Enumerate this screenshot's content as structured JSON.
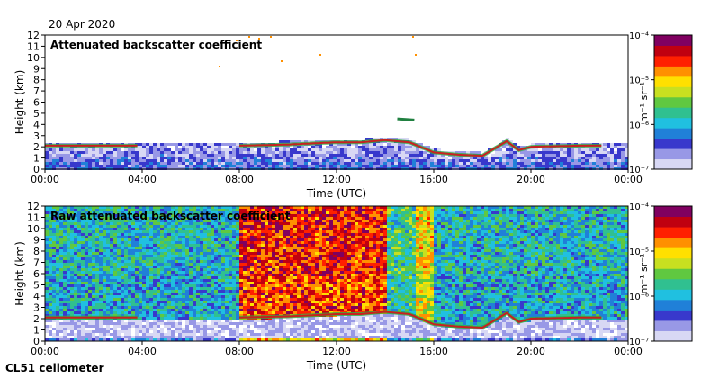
{
  "date": "20 Apr 2020",
  "footer": "CL51 ceilometer",
  "colors": {
    "scale": [
      "#ffffff",
      "#d8d8f4",
      "#9898e6",
      "#3838cc",
      "#2080d8",
      "#20c0e0",
      "#30c090",
      "#60c840",
      "#c8e020",
      "#ffe000",
      "#ff9000",
      "#ff2000",
      "#c00010",
      "#800060"
    ],
    "layer": "#c82020",
    "axis": "#000000"
  },
  "chart_data": [
    {
      "type": "heatmap",
      "title": "Attenuated backscatter coefficient",
      "xlabel": "Time (UTC)",
      "ylabel": "Height (km)",
      "xticks": [
        "00:00",
        "04:00",
        "08:00",
        "12:00",
        "16:00",
        "20:00",
        "00:00"
      ],
      "xlim_hours": [
        0,
        24
      ],
      "yticks": [
        "0",
        "1",
        "2",
        "3",
        "4",
        "5",
        "6",
        "7",
        "8",
        "9",
        "10",
        "11",
        "12"
      ],
      "ylim_km": [
        0,
        12
      ],
      "colorbar": {
        "label": "m⁻¹ sr⁻¹",
        "ticks": [
          "10⁻⁴",
          "10⁻⁵",
          "10⁻⁶",
          "10⁻⁷"
        ],
        "range": [
          1e-07,
          0.0001
        ],
        "scale": "log"
      },
      "layer_heights_km": [
        [
          0,
          2.1
        ],
        [
          4,
          2.1
        ],
        [
          8,
          2.1
        ],
        [
          10,
          2.2
        ],
        [
          12,
          2.4
        ],
        [
          13,
          2.4
        ],
        [
          14,
          2.6
        ],
        [
          15,
          2.4
        ],
        [
          16,
          1.5
        ],
        [
          17,
          1.3
        ],
        [
          18,
          1.2
        ],
        [
          19,
          2.5
        ],
        [
          19.5,
          1.7
        ],
        [
          20,
          2.0
        ],
        [
          22,
          2.1
        ]
      ],
      "elevated_layer_km": [
        [
          14.5,
          4.5
        ],
        [
          15.2,
          4.4
        ]
      ],
      "background": "low"
    },
    {
      "type": "heatmap",
      "title": "Raw attenuated backscatter coefficient",
      "xlabel": "Time (UTC)",
      "ylabel": "Height (km)",
      "xticks": [
        "00:00",
        "04:00",
        "08:00",
        "12:00",
        "16:00",
        "20:00",
        "00:00"
      ],
      "xlim_hours": [
        0,
        24
      ],
      "yticks": [
        "0",
        "1",
        "2",
        "3",
        "4",
        "5",
        "6",
        "7",
        "8",
        "9",
        "10",
        "11",
        "12"
      ],
      "ylim_km": [
        0,
        12
      ],
      "colorbar": {
        "label": "m⁻¹ sr⁻¹",
        "ticks": [
          "10⁻⁴",
          "10⁻⁵",
          "10⁻⁶",
          "10⁻⁷"
        ],
        "range": [
          1e-07,
          0.0001
        ],
        "scale": "log"
      },
      "layer_heights_km": [
        [
          0,
          2.1
        ],
        [
          4,
          2.1
        ],
        [
          8,
          2.1
        ],
        [
          10,
          2.2
        ],
        [
          12,
          2.4
        ],
        [
          13,
          2.4
        ],
        [
          14,
          2.6
        ],
        [
          15,
          2.4
        ],
        [
          16,
          1.5
        ],
        [
          17,
          1.3
        ],
        [
          18,
          1.2
        ],
        [
          19,
          2.5
        ],
        [
          19.5,
          1.7
        ],
        [
          20,
          2.0
        ],
        [
          22,
          2.1
        ]
      ],
      "noise_intensity_by_hour": [
        [
          0,
          0.38
        ],
        [
          8,
          0.38
        ],
        [
          8,
          0.85
        ],
        [
          14,
          0.85
        ],
        [
          14,
          0.45
        ],
        [
          15.2,
          0.45
        ],
        [
          15.2,
          0.65
        ],
        [
          16,
          0.65
        ],
        [
          16,
          0.38
        ],
        [
          24,
          0.38
        ]
      ],
      "background": "high"
    }
  ]
}
